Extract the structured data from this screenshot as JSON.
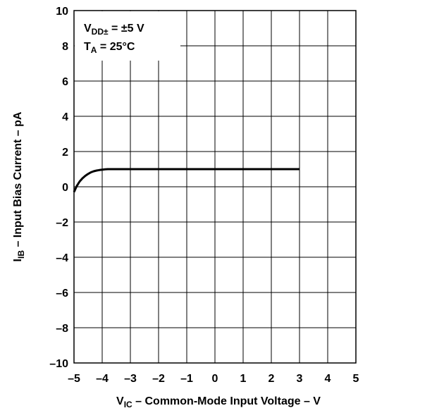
{
  "chart_data": {
    "type": "line",
    "xlabel": {
      "main": "V",
      "sub": "IC",
      "rest": " – Common-Mode Input Voltage – V"
    },
    "ylabel": {
      "main": "I",
      "sub": "IB",
      "rest": " – Input Bias Current – pA"
    },
    "annotation": {
      "line1": {
        "main": "V",
        "sub": "DD±",
        "rest": " = ±5 V"
      },
      "line2": {
        "main": "T",
        "sub": "A",
        "rest": " = 25°C"
      }
    },
    "xlim": [
      -5,
      5
    ],
    "ylim": [
      -10,
      10
    ],
    "x_ticks": [
      -5,
      -4,
      -3,
      -2,
      -1,
      0,
      1,
      2,
      3,
      4,
      5
    ],
    "x_tick_labels": [
      "–5",
      "–4",
      "–3",
      "–2",
      "–1",
      "0",
      "1",
      "2",
      "3",
      "4",
      "5"
    ],
    "y_ticks": [
      10,
      8,
      6,
      4,
      2,
      0,
      -2,
      -4,
      -6,
      -8,
      -10
    ],
    "y_tick_labels": [
      "10",
      "8",
      "6",
      "4",
      "2",
      "0",
      "–2",
      "–4",
      "–6",
      "–8",
      "–10"
    ],
    "grid": true,
    "series": [
      {
        "x": [
          -5.0,
          -4.9,
          -4.8,
          -4.7,
          -4.6,
          -4.5,
          -4.4,
          -4.3,
          -4.2,
          -4.1,
          -4.0,
          -3.9,
          -3.8,
          -3.7,
          -3.6,
          -3.5,
          -3.0,
          -2.0,
          -1.0,
          0.0,
          1.0,
          2.0,
          3.0
        ],
        "y": [
          -0.3,
          0.05,
          0.3,
          0.48,
          0.62,
          0.73,
          0.82,
          0.88,
          0.92,
          0.95,
          0.97,
          0.99,
          1.0,
          1.0,
          1.0,
          1.0,
          1.0,
          1.0,
          1.0,
          1.0,
          1.0,
          1.0,
          1.0
        ]
      }
    ]
  }
}
